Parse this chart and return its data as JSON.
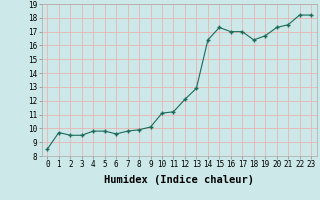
{
  "x": [
    0,
    1,
    2,
    3,
    4,
    5,
    6,
    7,
    8,
    9,
    10,
    11,
    12,
    13,
    14,
    15,
    16,
    17,
    18,
    19,
    20,
    21,
    22,
    23
  ],
  "y": [
    8.5,
    9.7,
    9.5,
    9.5,
    9.8,
    9.8,
    9.6,
    9.8,
    9.9,
    10.1,
    11.1,
    11.2,
    12.1,
    12.9,
    16.4,
    17.3,
    17.0,
    17.0,
    16.4,
    16.7,
    17.3,
    17.5,
    18.2,
    18.2
  ],
  "xlim": [
    -0.5,
    23.5
  ],
  "ylim": [
    8,
    19
  ],
  "yticks": [
    8,
    9,
    10,
    11,
    12,
    13,
    14,
    15,
    16,
    17,
    18,
    19
  ],
  "xtick_labels": [
    "0",
    "1",
    "2",
    "3",
    "4",
    "5",
    "6",
    "7",
    "8",
    "9",
    "10",
    "11",
    "12",
    "13",
    "14",
    "15",
    "16",
    "17",
    "18",
    "19",
    "20",
    "21",
    "22",
    "23"
  ],
  "xlabel": "Humidex (Indice chaleur)",
  "line_color": "#1a6b5a",
  "marker_color": "#1a6b5a",
  "bg_color": "#cce8e8",
  "grid_color": "#e8b4b4",
  "tick_fontsize": 5.5,
  "label_fontsize": 7.5
}
